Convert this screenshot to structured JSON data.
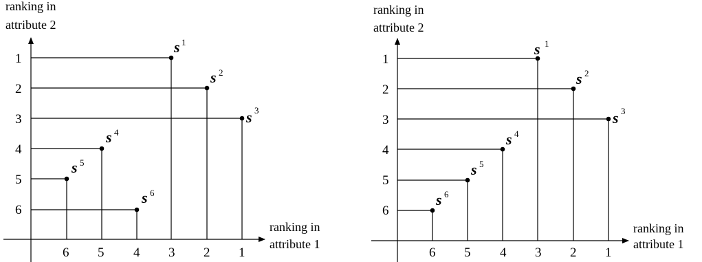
{
  "diagrams": [
    {
      "y_axis_label": [
        "ranking in",
        "attribute 2"
      ],
      "x_axis_label": [
        "ranking in",
        "attribute 1"
      ],
      "y_ticks": [
        "1",
        "2",
        "3",
        "4",
        "5",
        "6"
      ],
      "x_ticks": [
        "6",
        "5",
        "4",
        "3",
        "2",
        "1"
      ],
      "points": [
        {
          "name": "s",
          "sup": "1",
          "x_rank": 3,
          "y_rank": 1
        },
        {
          "name": "s",
          "sup": "2",
          "x_rank": 2,
          "y_rank": 2
        },
        {
          "name": "s",
          "sup": "3",
          "x_rank": 1,
          "y_rank": 3
        },
        {
          "name": "s",
          "sup": "4",
          "x_rank": 5,
          "y_rank": 4
        },
        {
          "name": "s",
          "sup": "5",
          "x_rank": 6,
          "y_rank": 5
        },
        {
          "name": "s",
          "sup": "6",
          "x_rank": 4,
          "y_rank": 6
        }
      ]
    },
    {
      "y_axis_label": [
        "ranking in",
        "attribute 2"
      ],
      "x_axis_label": [
        "ranking in",
        "attribute 1"
      ],
      "y_ticks": [
        "1",
        "2",
        "3",
        "4",
        "5",
        "6"
      ],
      "x_ticks": [
        "6",
        "5",
        "4",
        "3",
        "2",
        "1"
      ],
      "points": [
        {
          "name": "s",
          "sup": "1",
          "x_rank": 3,
          "y_rank": 1
        },
        {
          "name": "s",
          "sup": "2",
          "x_rank": 2,
          "y_rank": 2
        },
        {
          "name": "s",
          "sup": "3",
          "x_rank": 1,
          "y_rank": 3
        },
        {
          "name": "s",
          "sup": "4",
          "x_rank": 4,
          "y_rank": 4
        },
        {
          "name": "s",
          "sup": "5",
          "x_rank": 5,
          "y_rank": 5
        },
        {
          "name": "s",
          "sup": "6",
          "x_rank": 6,
          "y_rank": 6
        }
      ]
    }
  ]
}
